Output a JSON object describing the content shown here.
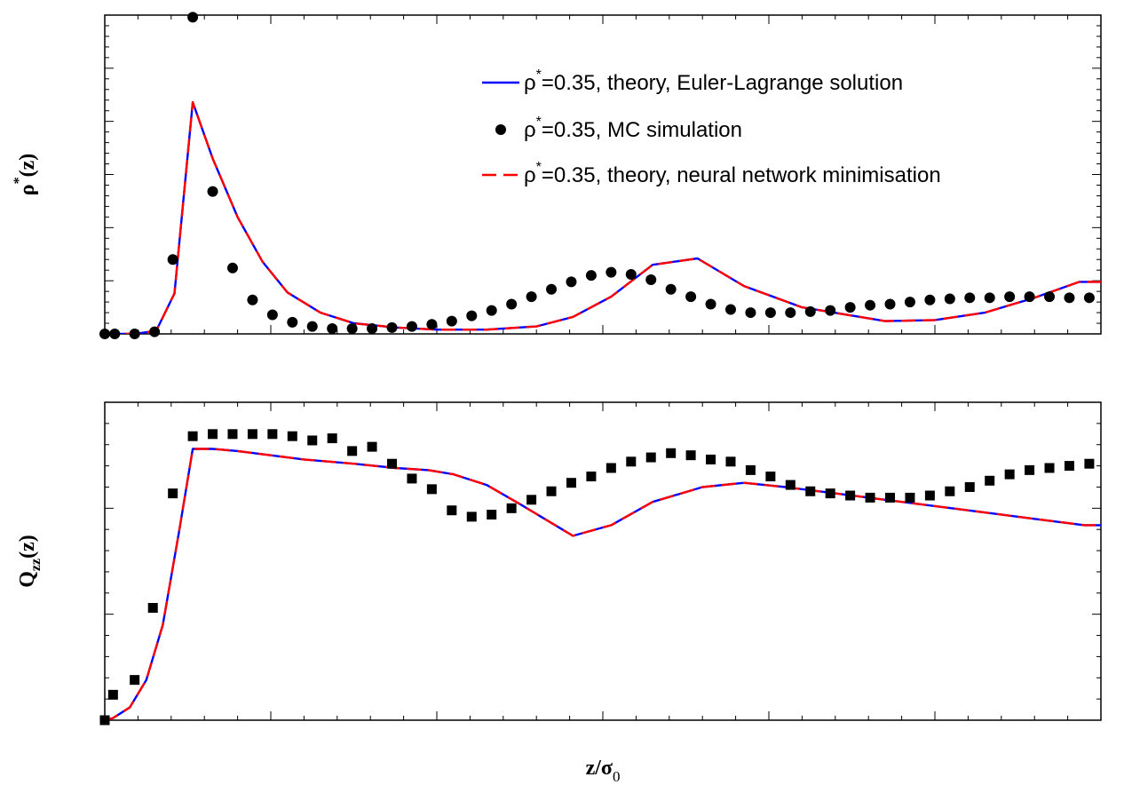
{
  "chart_data": [
    {
      "type": "line",
      "xlim": [
        0,
        6
      ],
      "ylim": [
        0,
        3
      ],
      "xticks": [
        "0",
        "1",
        "2",
        "3",
        "4",
        "5",
        "6"
      ],
      "yticks": [
        "0.0",
        "0.5",
        "1.0",
        "1.5",
        "2.0",
        "2.5",
        "3.0"
      ],
      "ylabel": {
        "base": "ρ",
        "sup": "*",
        "tail": "(z)"
      },
      "legend_position": "top-right",
      "grid": false,
      "series": [
        {
          "name": "ρ*=0.35, theory, Euler-Lagrange solution",
          "legend_rest": "=0.35, theory, Euler-Lagrange solution",
          "style": "solid",
          "color": "#0000ff",
          "x": [
            0,
            0.05,
            0.18,
            0.31,
            0.42,
            0.53,
            0.65,
            0.8,
            0.95,
            1.1,
            1.3,
            1.5,
            1.75,
            2.0,
            2.3,
            2.6,
            2.82,
            3.05,
            3.3,
            3.57,
            3.85,
            4.2,
            4.7,
            5.0,
            5.3,
            5.6,
            5.87,
            6.0
          ],
          "values": [
            0,
            0,
            0,
            0.03,
            0.38,
            2.18,
            1.65,
            1.1,
            0.68,
            0.39,
            0.2,
            0.1,
            0.06,
            0.04,
            0.04,
            0.07,
            0.16,
            0.35,
            0.65,
            0.71,
            0.45,
            0.25,
            0.12,
            0.13,
            0.2,
            0.34,
            0.49,
            0.49
          ]
        },
        {
          "name": "ρ*=0.35, MC simulation",
          "legend_rest": "=0.35, MC simulation",
          "style": "marker-circle",
          "color": "#000000",
          "x": [
            0,
            0.06,
            0.18,
            0.3,
            0.41,
            0.53,
            0.65,
            0.77,
            0.89,
            1.01,
            1.13,
            1.25,
            1.37,
            1.49,
            1.61,
            1.73,
            1.85,
            1.97,
            2.09,
            2.21,
            2.33,
            2.45,
            2.57,
            2.69,
            2.81,
            2.93,
            3.05,
            3.17,
            3.29,
            3.41,
            3.53,
            3.65,
            3.77,
            3.89,
            4.01,
            4.13,
            4.25,
            4.37,
            4.49,
            4.61,
            4.73,
            4.85,
            4.97,
            5.09,
            5.21,
            5.33,
            5.45,
            5.57,
            5.69,
            5.81,
            5.93
          ],
          "values": [
            0,
            0,
            0,
            0.02,
            0.7,
            2.98,
            1.34,
            0.62,
            0.32,
            0.18,
            0.11,
            0.07,
            0.05,
            0.05,
            0.05,
            0.06,
            0.07,
            0.09,
            0.12,
            0.17,
            0.22,
            0.28,
            0.35,
            0.42,
            0.49,
            0.55,
            0.58,
            0.56,
            0.51,
            0.42,
            0.35,
            0.28,
            0.23,
            0.2,
            0.2,
            0.2,
            0.21,
            0.22,
            0.25,
            0.27,
            0.28,
            0.3,
            0.32,
            0.33,
            0.34,
            0.34,
            0.35,
            0.35,
            0.35,
            0.34,
            0.34
          ]
        },
        {
          "name": "ρ*=0.35, theory, neural network minimisation",
          "legend_rest": "=0.35, theory, neural network minimisation",
          "style": "dashed",
          "color": "#ff0000",
          "x": [
            0,
            0.05,
            0.18,
            0.31,
            0.42,
            0.53,
            0.65,
            0.8,
            0.95,
            1.1,
            1.3,
            1.5,
            1.75,
            2.0,
            2.3,
            2.6,
            2.82,
            3.05,
            3.3,
            3.57,
            3.85,
            4.2,
            4.7,
            5.0,
            5.3,
            5.6,
            5.87,
            6.0
          ],
          "values": [
            0,
            0,
            0,
            0.03,
            0.38,
            2.18,
            1.65,
            1.1,
            0.68,
            0.39,
            0.2,
            0.1,
            0.06,
            0.04,
            0.04,
            0.07,
            0.16,
            0.35,
            0.65,
            0.71,
            0.45,
            0.25,
            0.12,
            0.13,
            0.2,
            0.34,
            0.49,
            0.49
          ]
        }
      ]
    },
    {
      "type": "line",
      "xlim": [
        0,
        6
      ],
      "ylim": [
        -0.5,
        1.0
      ],
      "xticks": [
        "0",
        "1",
        "2",
        "3",
        "4",
        "5",
        "6"
      ],
      "yticks": [
        "-0.5",
        "0.0",
        "0.5",
        "1.0"
      ],
      "xlabel": {
        "base": "z/σ",
        "sub": "0"
      },
      "ylabel": {
        "base": "Q",
        "sub": "zz",
        "tail": "(z)"
      },
      "grid": false,
      "series": [
        {
          "style": "solid",
          "color": "#0000ff",
          "x": [
            0,
            0.05,
            0.15,
            0.25,
            0.35,
            0.45,
            0.53,
            0.65,
            0.8,
            1.0,
            1.2,
            1.5,
            1.75,
            1.95,
            2.1,
            2.3,
            2.5,
            2.82,
            3.05,
            3.3,
            3.6,
            3.85,
            4.1,
            4.4,
            4.7,
            5.0,
            5.3,
            5.6,
            5.9,
            6.0
          ],
          "values": [
            -0.5,
            -0.49,
            -0.44,
            -0.31,
            -0.05,
            0.4,
            0.78,
            0.78,
            0.77,
            0.75,
            0.73,
            0.71,
            0.69,
            0.68,
            0.66,
            0.61,
            0.52,
            0.37,
            0.42,
            0.53,
            0.6,
            0.62,
            0.6,
            0.57,
            0.54,
            0.51,
            0.48,
            0.45,
            0.42,
            0.42
          ]
        },
        {
          "style": "marker-square",
          "color": "#000000",
          "x": [
            0,
            0.05,
            0.18,
            0.29,
            0.41,
            0.53,
            0.65,
            0.77,
            0.89,
            1.01,
            1.13,
            1.25,
            1.37,
            1.49,
            1.61,
            1.73,
            1.85,
            1.97,
            2.09,
            2.21,
            2.33,
            2.45,
            2.57,
            2.69,
            2.81,
            2.93,
            3.05,
            3.17,
            3.29,
            3.41,
            3.53,
            3.65,
            3.77,
            3.89,
            4.01,
            4.13,
            4.25,
            4.37,
            4.49,
            4.61,
            4.73,
            4.85,
            4.97,
            5.09,
            5.21,
            5.33,
            5.45,
            5.57,
            5.69,
            5.81,
            5.93
          ],
          "values": [
            -0.5,
            -0.38,
            -0.31,
            0.03,
            0.57,
            0.84,
            0.85,
            0.85,
            0.85,
            0.85,
            0.84,
            0.82,
            0.83,
            0.77,
            0.79,
            0.71,
            0.64,
            0.59,
            0.49,
            0.46,
            0.47,
            0.5,
            0.54,
            0.58,
            0.62,
            0.65,
            0.69,
            0.72,
            0.74,
            0.76,
            0.75,
            0.73,
            0.72,
            0.68,
            0.65,
            0.61,
            0.58,
            0.57,
            0.56,
            0.55,
            0.55,
            0.55,
            0.56,
            0.58,
            0.6,
            0.63,
            0.66,
            0.68,
            0.69,
            0.7,
            0.71
          ]
        },
        {
          "style": "dashed",
          "color": "#ff0000",
          "x": [
            0,
            0.05,
            0.15,
            0.25,
            0.35,
            0.45,
            0.53,
            0.65,
            0.8,
            1.0,
            1.2,
            1.5,
            1.75,
            1.95,
            2.1,
            2.3,
            2.5,
            2.82,
            3.05,
            3.3,
            3.6,
            3.85,
            4.1,
            4.4,
            4.7,
            5.0,
            5.3,
            5.6,
            5.9,
            6.0
          ],
          "values": [
            -0.5,
            -0.49,
            -0.44,
            -0.31,
            -0.05,
            0.4,
            0.78,
            0.78,
            0.77,
            0.75,
            0.73,
            0.71,
            0.69,
            0.68,
            0.66,
            0.61,
            0.52,
            0.37,
            0.42,
            0.53,
            0.6,
            0.62,
            0.6,
            0.57,
            0.54,
            0.51,
            0.48,
            0.45,
            0.42,
            0.42
          ]
        }
      ]
    }
  ]
}
